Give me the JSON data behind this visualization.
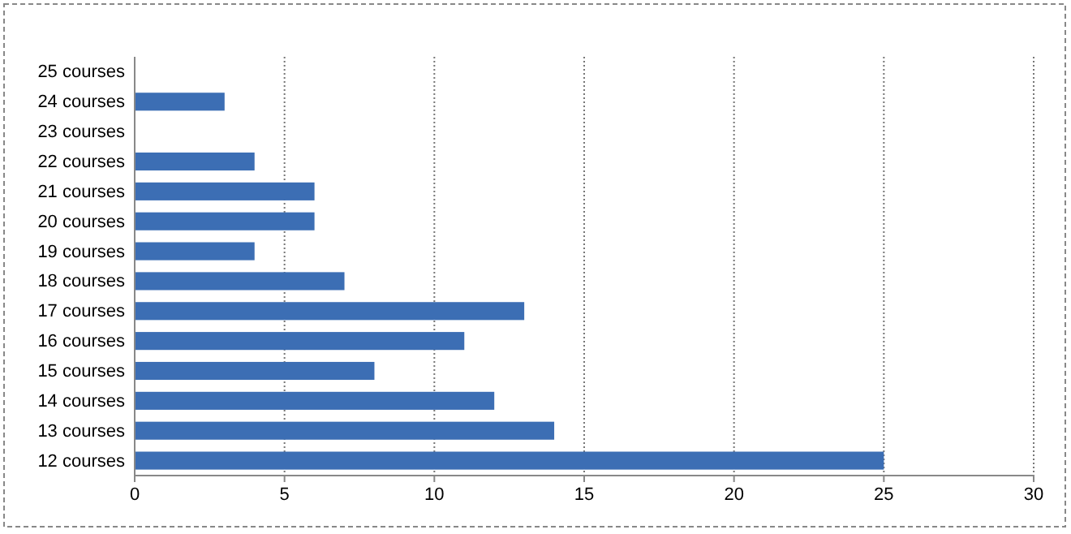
{
  "chart_data": {
    "type": "bar",
    "orientation": "horizontal",
    "categories": [
      "25 courses",
      "24 courses",
      "23 courses",
      "22 courses",
      "21 courses",
      "20 courses",
      "19 courses",
      "18 courses",
      "17 courses",
      "16 courses",
      "15 courses",
      "14 courses",
      "13 courses",
      "12 courses"
    ],
    "values": [
      0,
      3,
      0,
      4,
      6,
      6,
      4,
      7,
      13,
      11,
      8,
      12,
      14,
      25
    ],
    "color": "#3c6eb4",
    "xlim": [
      0,
      30
    ],
    "xticks": [
      0,
      5,
      10,
      15,
      20,
      25,
      30
    ],
    "grid": "x"
  }
}
